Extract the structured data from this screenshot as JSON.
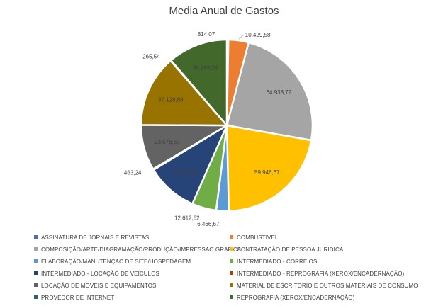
{
  "chart_data": {
    "type": "pie",
    "title": "Media Anual de Gastos",
    "slices": [
      {
        "name": "ASSINATURA DE JORNAIS E REVISTAS",
        "value": 814.07,
        "label": "814,07",
        "color": "#4472C4"
      },
      {
        "name": "COMBUSTIVEL",
        "value": 10429.58,
        "label": "10.429,58",
        "color": "#ED7D31"
      },
      {
        "name": "COMPOSIÇÃO/ARTE/DIAGRAMAÇÃO/PRODUÇÃO/IMPRESSAO GRAFICA",
        "value": 64938.72,
        "label": "64.938,72",
        "color": "#A5A5A5"
      },
      {
        "name": "CONTRATAÇÃO DE PESSOA JURIDICA",
        "value": 59946.67,
        "label": "59.946,67",
        "color": "#FFC000"
      },
      {
        "name": "ELABORAÇÃO/MANUTENÇAO DE SITE/HOSPEDAGEM",
        "value": 6466.67,
        "label": "6.466,67",
        "color": "#5B9BD5"
      },
      {
        "name": "INTERMEDIADO - CORREIOS",
        "value": 12612.62,
        "label": "12.612,62",
        "color": "#70AD47"
      },
      {
        "name": "INTERMEDIADO - LOCAÇÃO DE VEÍCULOS",
        "value": 26666.67,
        "label": "26.666,67",
        "color": "#264478"
      },
      {
        "name": "INTERMEDIADO - REPROGRAFIA (XEROX/ENCADERNAÇÃO)",
        "value": 463.24,
        "label": "463,24",
        "color": "#9E480E"
      },
      {
        "name": "LOCAÇÃO DE MOVEIS E EQUIPAMENTOS",
        "value": 23576.67,
        "label": "23.576,67",
        "color": "#636363"
      },
      {
        "name": "MATERIAL DE ESCRITORIO E OUTROS MATERIAIS DE CONSUMO",
        "value": 37128.88,
        "label": "37.128,88",
        "color": "#997300"
      },
      {
        "name": "PROVEDOR DE INTERNET",
        "value": 265.54,
        "label": "265,54",
        "color": "#255E91"
      },
      {
        "name": "REPROGRAFIA (XEROX/ENCADERNAÇÃO)",
        "value": 30963.24,
        "label": "30.963,24",
        "color": "#43682B"
      }
    ],
    "legend_position": "bottom"
  }
}
